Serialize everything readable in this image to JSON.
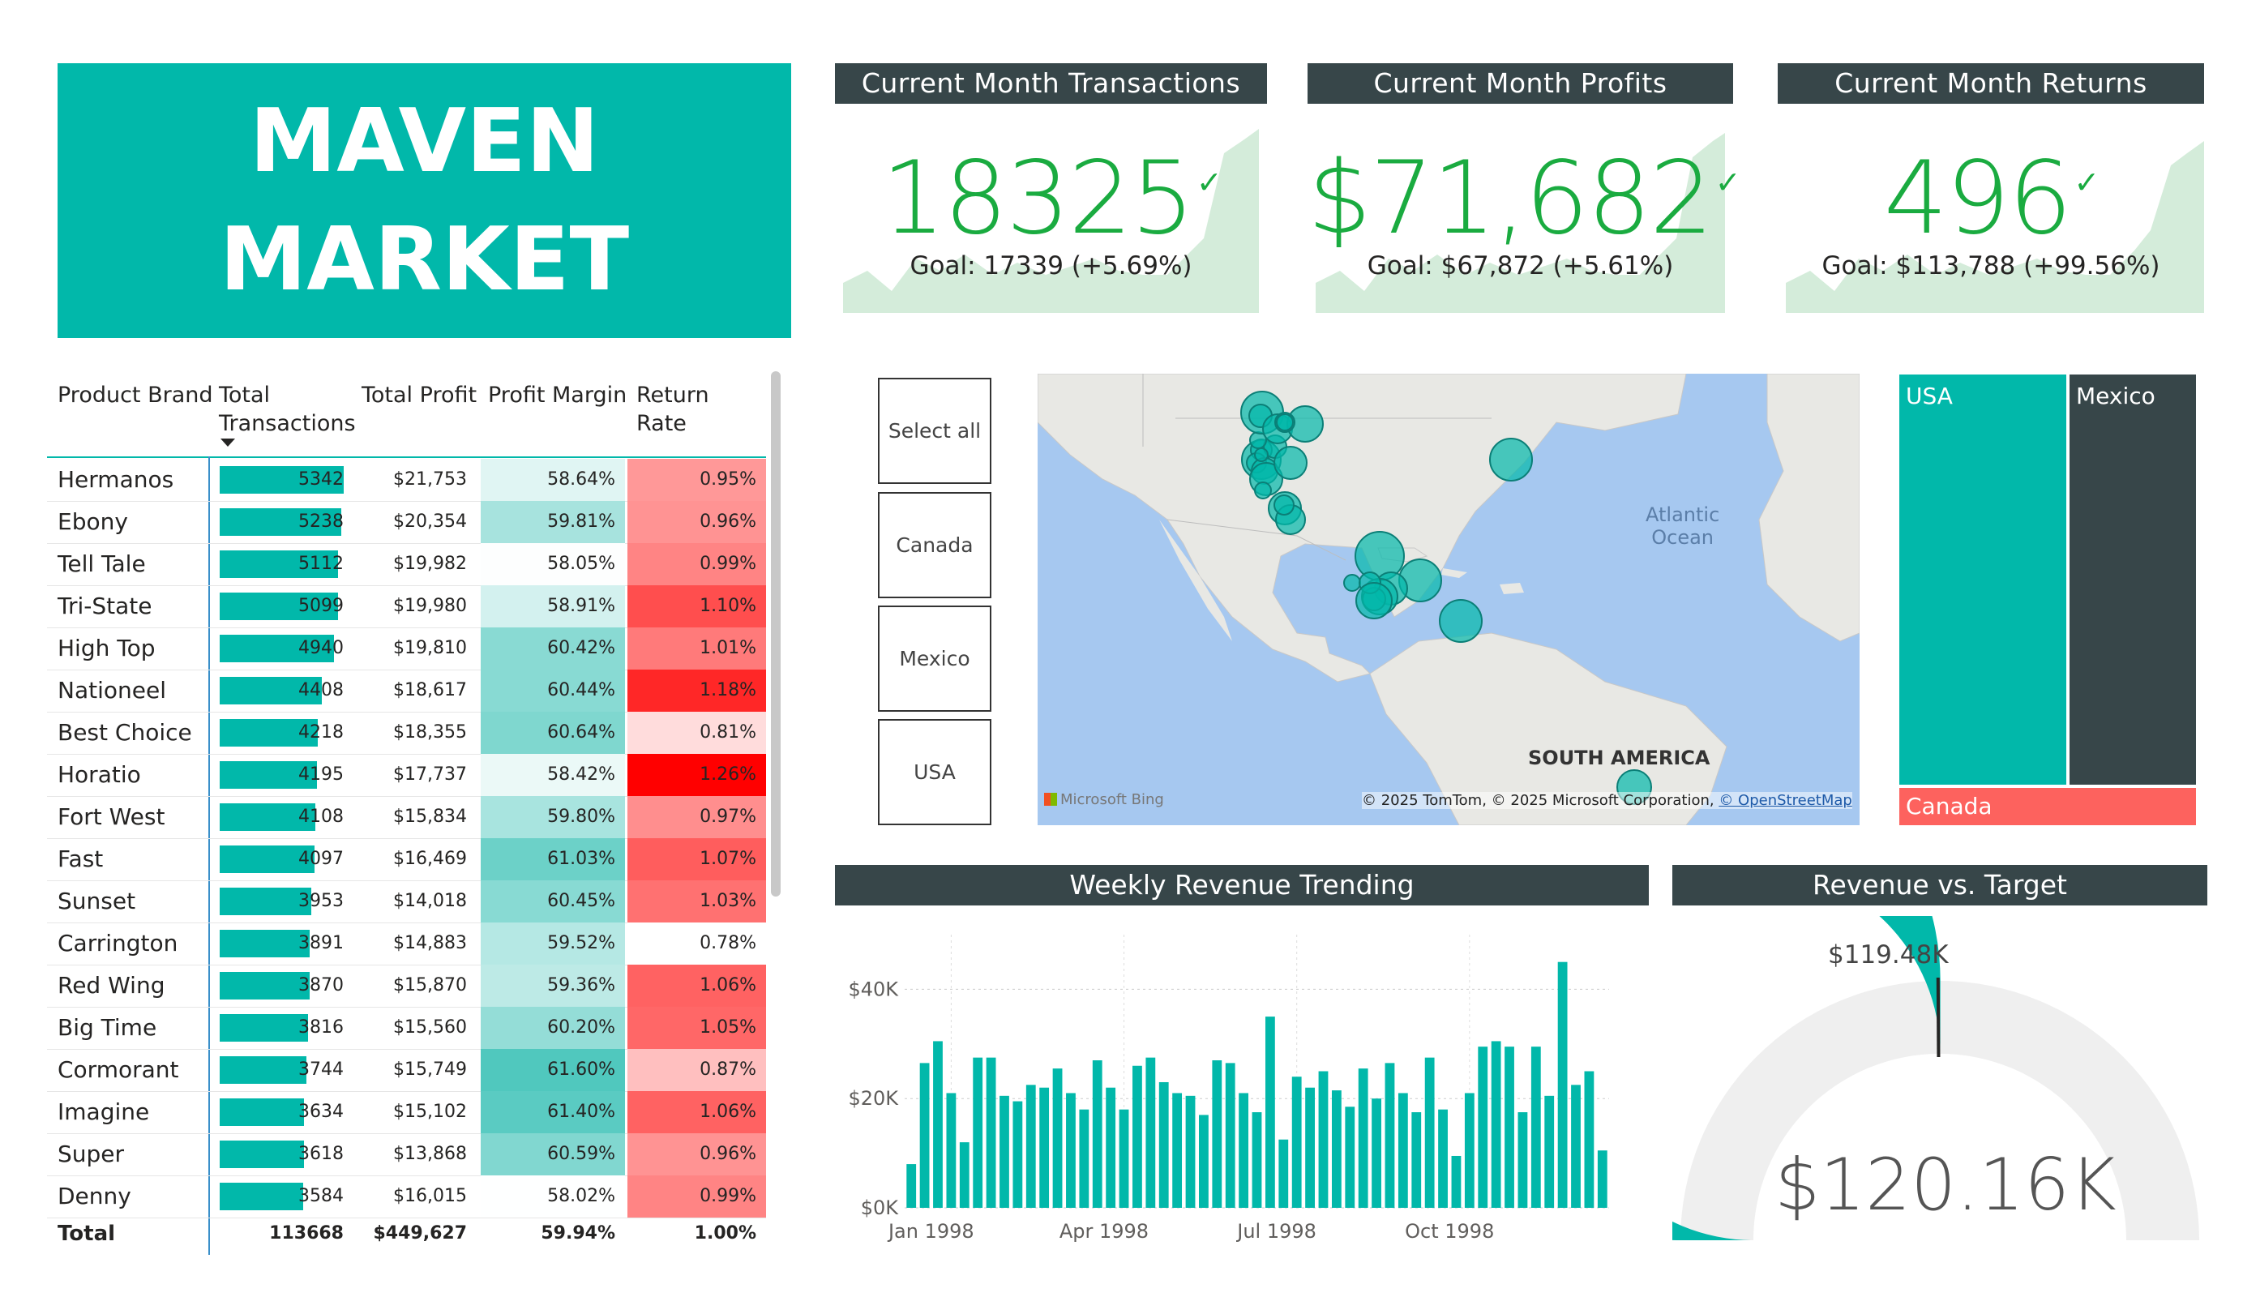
{
  "title": {
    "line1": "MAVEN",
    "line2": "MARKET"
  },
  "kpis": [
    {
      "header": "Current Month Transactions",
      "value": "18325",
      "goal": "Goal: 17339 (+5.69%)"
    },
    {
      "header": "Current Month Profits",
      "value": "$71,682",
      "goal": "Goal: $67,872 (+5.61%)"
    },
    {
      "header": "Current Month Returns",
      "value": "496",
      "goal": "Goal: $113,788 (+99.56%)"
    }
  ],
  "colors": {
    "teal": "#01b8aa",
    "dark": "#374649",
    "green": "#1aab40",
    "red": "#fd625e",
    "area": "#d4ecda"
  },
  "table": {
    "headers": {
      "brand": "Product Brand",
      "transactions": "Total Transactions",
      "profit": "Total Profit",
      "margin": "Profit Margin",
      "return_rate": "Return Rate"
    },
    "rows": [
      {
        "brand": "Hermanos",
        "transactions": "5342",
        "profit": "$21,753",
        "margin": "58.64%",
        "return_rate": "0.95%"
      },
      {
        "brand": "Ebony",
        "transactions": "5238",
        "profit": "$20,354",
        "margin": "59.81%",
        "return_rate": "0.96%"
      },
      {
        "brand": "Tell Tale",
        "transactions": "5112",
        "profit": "$19,982",
        "margin": "58.05%",
        "return_rate": "0.99%"
      },
      {
        "brand": "Tri-State",
        "transactions": "5099",
        "profit": "$19,980",
        "margin": "58.91%",
        "return_rate": "1.10%"
      },
      {
        "brand": "High Top",
        "transactions": "4940",
        "profit": "$19,810",
        "margin": "60.42%",
        "return_rate": "1.01%"
      },
      {
        "brand": "Nationeel",
        "transactions": "4408",
        "profit": "$18,617",
        "margin": "60.44%",
        "return_rate": "1.18%"
      },
      {
        "brand": "Best Choice",
        "transactions": "4218",
        "profit": "$18,355",
        "margin": "60.64%",
        "return_rate": "0.81%"
      },
      {
        "brand": "Horatio",
        "transactions": "4195",
        "profit": "$17,737",
        "margin": "58.42%",
        "return_rate": "1.26%"
      },
      {
        "brand": "Fort West",
        "transactions": "4108",
        "profit": "$15,834",
        "margin": "59.80%",
        "return_rate": "0.97%"
      },
      {
        "brand": "Fast",
        "transactions": "4097",
        "profit": "$16,469",
        "margin": "61.03%",
        "return_rate": "1.07%"
      },
      {
        "brand": "Sunset",
        "transactions": "3953",
        "profit": "$14,018",
        "margin": "60.45%",
        "return_rate": "1.03%"
      },
      {
        "brand": "Carrington",
        "transactions": "3891",
        "profit": "$14,883",
        "margin": "59.52%",
        "return_rate": "0.78%"
      },
      {
        "brand": "Red Wing",
        "transactions": "3870",
        "profit": "$15,870",
        "margin": "59.36%",
        "return_rate": "1.06%"
      },
      {
        "brand": "Big Time",
        "transactions": "3816",
        "profit": "$15,560",
        "margin": "60.20%",
        "return_rate": "1.05%"
      },
      {
        "brand": "Cormorant",
        "transactions": "3744",
        "profit": "$15,749",
        "margin": "61.60%",
        "return_rate": "0.87%"
      },
      {
        "brand": "Imagine",
        "transactions": "3634",
        "profit": "$15,102",
        "margin": "61.40%",
        "return_rate": "1.06%"
      },
      {
        "brand": "Super",
        "transactions": "3618",
        "profit": "$13,868",
        "margin": "60.59%",
        "return_rate": "0.96%"
      },
      {
        "brand": "Denny",
        "transactions": "3584",
        "profit": "$16,015",
        "margin": "58.02%",
        "return_rate": "0.99%"
      }
    ],
    "total": {
      "label": "Total",
      "transactions": "113668",
      "profit": "$449,627",
      "margin": "59.94%",
      "return_rate": "1.00%"
    }
  },
  "slicer": {
    "items": [
      "Select all",
      "Canada",
      "Mexico",
      "USA"
    ]
  },
  "map": {
    "ocean_label_1": "Atlantic",
    "ocean_label_2": "Ocean",
    "continent_label": "SOUTH AMERICA",
    "logo": "Microsoft Bing",
    "attribution_prefix": "© 2025 TomTom, © 2025 Microsoft Corporation, ",
    "attribution_link": "© OpenStreetMap"
  },
  "treemap": {
    "usa": "USA",
    "mexico": "Mexico",
    "canada": "Canada"
  },
  "weekly": {
    "header": "Weekly Revenue Trending"
  },
  "gauge": {
    "header": "Revenue vs. Target",
    "target_label": "$119.48K",
    "value_label": "$120.16K",
    "value": 120.16,
    "target": 119.48,
    "max": 240
  },
  "chart_data": {
    "type": "bar",
    "title": "Weekly Revenue Trending",
    "xlabel": "",
    "ylabel": "",
    "ylim": [
      0,
      50000
    ],
    "y_ticks": [
      "$0K",
      "$20K",
      "$40K"
    ],
    "x_ticks": [
      "Jan 1998",
      "Apr 1998",
      "Jul 1998",
      "Oct 1998"
    ],
    "values": [
      8000,
      26500,
      30500,
      21000,
      12000,
      27500,
      27500,
      20500,
      19500,
      22500,
      22000,
      25500,
      21000,
      18000,
      27000,
      22000,
      18000,
      26000,
      27500,
      23000,
      21000,
      20500,
      17000,
      27000,
      26500,
      21000,
      17500,
      35000,
      12500,
      24000,
      22000,
      25000,
      21500,
      18500,
      25500,
      20000,
      26500,
      21000,
      17500,
      27500,
      18000,
      9500,
      21000,
      29500,
      30500,
      29500,
      17500,
      29500,
      20500,
      45000,
      22500,
      25000,
      10500
    ],
    "x_tick_index": [
      0,
      13,
      26,
      39
    ]
  }
}
